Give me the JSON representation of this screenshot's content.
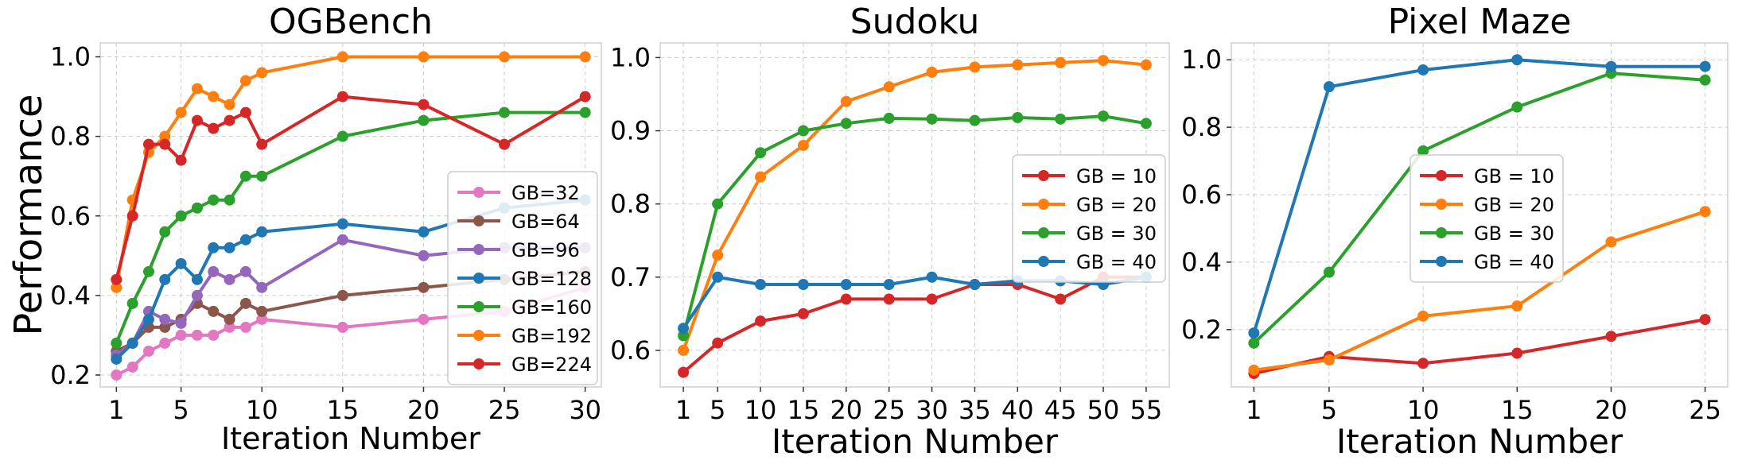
{
  "chart_data": [
    {
      "type": "line",
      "title": "OGBench",
      "xlabel": "Iteration Number",
      "ylabel": "Performance",
      "xlim": [
        0,
        31
      ],
      "ylim": [
        0.17,
        1.035
      ],
      "xticks": [
        1,
        5,
        10,
        15,
        20,
        25,
        30
      ],
      "yticks": [
        0.2,
        0.4,
        0.6,
        0.8,
        1.0
      ],
      "ytick_labels": [
        "0.2",
        "0.4",
        "0.6",
        "0.8",
        "1.0"
      ],
      "grid": true,
      "legend_position": "right",
      "x": [
        1,
        2,
        3,
        4,
        5,
        6,
        7,
        8,
        9,
        10,
        15,
        20,
        25,
        30
      ],
      "series": [
        {
          "name": "GB=32",
          "color": "#e377c2",
          "values": [
            0.2,
            0.22,
            0.26,
            0.28,
            0.3,
            0.3,
            0.3,
            0.32,
            0.32,
            0.34,
            0.32,
            0.34,
            0.36,
            0.42
          ]
        },
        {
          "name": "GB=64",
          "color": "#8c564b",
          "values": [
            0.26,
            0.28,
            0.32,
            0.32,
            0.34,
            0.38,
            0.36,
            0.34,
            0.38,
            0.36,
            0.4,
            0.42,
            0.44,
            0.46
          ]
        },
        {
          "name": "GB=96",
          "color": "#9467bd",
          "values": [
            0.25,
            0.28,
            0.36,
            0.34,
            0.33,
            0.4,
            0.46,
            0.44,
            0.46,
            0.42,
            0.54,
            0.5,
            0.52,
            0.52
          ]
        },
        {
          "name": "GB=128",
          "color": "#1f77b4",
          "values": [
            0.24,
            0.28,
            0.34,
            0.44,
            0.48,
            0.44,
            0.52,
            0.52,
            0.54,
            0.56,
            0.58,
            0.56,
            0.62,
            0.64
          ]
        },
        {
          "name": "GB=160",
          "color": "#2ca02c",
          "values": [
            0.28,
            0.38,
            0.46,
            0.56,
            0.6,
            0.62,
            0.64,
            0.64,
            0.7,
            0.7,
            0.8,
            0.84,
            0.86,
            0.86
          ]
        },
        {
          "name": "GB=192",
          "color": "#ff7f0e",
          "values": [
            0.42,
            0.64,
            0.76,
            0.8,
            0.86,
            0.92,
            0.9,
            0.88,
            0.94,
            0.96,
            1.0,
            1.0,
            1.0,
            1.0
          ]
        },
        {
          "name": "GB=224",
          "color": "#d62728",
          "values": [
            0.44,
            0.6,
            0.78,
            0.78,
            0.74,
            0.84,
            0.82,
            0.84,
            0.86,
            0.78,
            0.9,
            0.88,
            0.78,
            0.9
          ]
        }
      ]
    },
    {
      "type": "line",
      "title": "Sudoku",
      "xlabel": "Iteration Number",
      "ylabel": "",
      "xlim": [
        -1.7,
        57.7
      ],
      "ylim": [
        0.55,
        1.02
      ],
      "xticks": [
        1,
        5,
        10,
        15,
        20,
        25,
        30,
        35,
        40,
        45,
        50,
        55
      ],
      "yticks": [
        0.6,
        0.7,
        0.8,
        0.9,
        1.0
      ],
      "ytick_labels": [
        "0.6",
        "0.7",
        "0.8",
        "0.9",
        "1.0"
      ],
      "grid": true,
      "legend_position": "right",
      "x": [
        1,
        5,
        10,
        15,
        20,
        25,
        30,
        35,
        40,
        45,
        50,
        55
      ],
      "series": [
        {
          "name": "GB = 10",
          "color": "#d62728",
          "values": [
            0.57,
            0.61,
            0.64,
            0.65,
            0.67,
            0.67,
            0.67,
            0.69,
            0.69,
            0.67,
            0.7,
            0.7
          ]
        },
        {
          "name": "GB = 20",
          "color": "#ff7f0e",
          "values": [
            0.6,
            0.73,
            0.837,
            0.88,
            0.94,
            0.96,
            0.98,
            0.987,
            0.99,
            0.993,
            0.996,
            0.99
          ]
        },
        {
          "name": "GB = 30",
          "color": "#2ca02c",
          "values": [
            0.62,
            0.8,
            0.87,
            0.9,
            0.91,
            0.917,
            0.916,
            0.914,
            0.918,
            0.916,
            0.92,
            0.91
          ]
        },
        {
          "name": "GB = 40",
          "color": "#1f77b4",
          "values": [
            0.63,
            0.7,
            0.69,
            0.69,
            0.69,
            0.69,
            0.7,
            0.69,
            0.695,
            0.695,
            0.69,
            0.7
          ]
        }
      ]
    },
    {
      "type": "line",
      "title": "Pixel Maze",
      "xlabel": "Iteration Number",
      "ylabel": "",
      "xlim": [
        -0.2,
        26.2
      ],
      "ylim": [
        0.03,
        1.05
      ],
      "xticks": [
        1,
        5,
        10,
        15,
        20,
        25
      ],
      "yticks": [
        0.2,
        0.4,
        0.6,
        0.8,
        1.0
      ],
      "ytick_labels": [
        "0.2",
        "0.4",
        "0.6",
        "0.8",
        "1.0"
      ],
      "grid": true,
      "legend_position": "center",
      "x": [
        1,
        5,
        10,
        15,
        20,
        25
      ],
      "series": [
        {
          "name": "GB = 10",
          "color": "#d62728",
          "values": [
            0.07,
            0.12,
            0.1,
            0.13,
            0.18,
            0.23
          ]
        },
        {
          "name": "GB = 20",
          "color": "#ff7f0e",
          "values": [
            0.08,
            0.11,
            0.24,
            0.27,
            0.46,
            0.55
          ]
        },
        {
          "name": "GB = 30",
          "color": "#2ca02c",
          "values": [
            0.16,
            0.37,
            0.73,
            0.86,
            0.96,
            0.94
          ]
        },
        {
          "name": "GB = 40",
          "color": "#1f77b4",
          "values": [
            0.19,
            0.92,
            0.97,
            1.0,
            0.98,
            0.98
          ]
        }
      ]
    }
  ]
}
